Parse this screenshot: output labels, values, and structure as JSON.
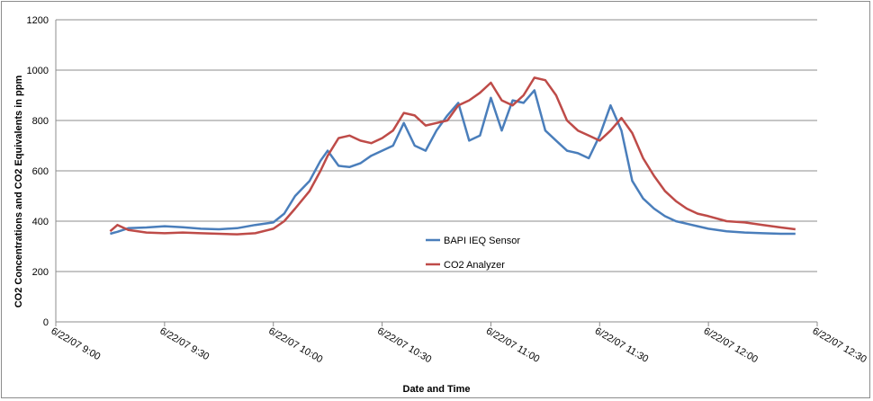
{
  "chart_data": {
    "type": "line",
    "title": "",
    "xlabel": "Date and Time",
    "ylabel": "CO2 Concentrations and CO2 Equivalents in ppm",
    "ylim": [
      0,
      1200
    ],
    "yticks": [
      0,
      200,
      400,
      600,
      800,
      1000,
      1200
    ],
    "xlim": [
      "6/22/07 9:00",
      "6/22/07 12:30"
    ],
    "xtick_labels": [
      "6/22/07 9:00",
      "6/22/07 9:30",
      "6/22/07 10:00",
      "6/22/07 10:30",
      "6/22/07 11:00",
      "6/22/07 11:30",
      "6/22/07 12:00",
      "6/22/07 12:30"
    ],
    "grid": "horizontal",
    "legend_position": "center-lower",
    "series": [
      {
        "name": "BAPI IEQ Sensor",
        "color": "#4a7ebb",
        "points": [
          [
            "9:15",
            350
          ],
          [
            "9:17",
            358
          ],
          [
            "9:20",
            372
          ],
          [
            "9:25",
            375
          ],
          [
            "9:30",
            380
          ],
          [
            "9:35",
            376
          ],
          [
            "9:40",
            370
          ],
          [
            "9:45",
            368
          ],
          [
            "9:50",
            372
          ],
          [
            "9:55",
            385
          ],
          [
            "10:00",
            395
          ],
          [
            "10:03",
            430
          ],
          [
            "10:06",
            500
          ],
          [
            "10:10",
            560
          ],
          [
            "10:13",
            640
          ],
          [
            "10:15",
            680
          ],
          [
            "10:18",
            620
          ],
          [
            "10:21",
            615
          ],
          [
            "10:24",
            630
          ],
          [
            "10:27",
            660
          ],
          [
            "10:30",
            680
          ],
          [
            "10:33",
            700
          ],
          [
            "10:36",
            790
          ],
          [
            "10:39",
            700
          ],
          [
            "10:42",
            680
          ],
          [
            "10:45",
            760
          ],
          [
            "10:48",
            820
          ],
          [
            "10:51",
            870
          ],
          [
            "10:54",
            720
          ],
          [
            "10:57",
            740
          ],
          [
            "11:00",
            890
          ],
          [
            "11:03",
            760
          ],
          [
            "11:06",
            880
          ],
          [
            "11:09",
            870
          ],
          [
            "11:12",
            920
          ],
          [
            "11:15",
            760
          ],
          [
            "11:18",
            720
          ],
          [
            "11:21",
            680
          ],
          [
            "11:24",
            670
          ],
          [
            "11:27",
            650
          ],
          [
            "11:30",
            740
          ],
          [
            "11:33",
            860
          ],
          [
            "11:36",
            760
          ],
          [
            "11:39",
            560
          ],
          [
            "11:42",
            490
          ],
          [
            "11:45",
            450
          ],
          [
            "11:48",
            420
          ],
          [
            "11:51",
            400
          ],
          [
            "11:54",
            390
          ],
          [
            "11:57",
            380
          ],
          [
            "12:00",
            370
          ],
          [
            "12:05",
            360
          ],
          [
            "12:10",
            355
          ],
          [
            "12:15",
            352
          ],
          [
            "12:20",
            350
          ],
          [
            "12:24",
            350
          ]
        ]
      },
      {
        "name": "CO2 Analyzer",
        "color": "#be4b48",
        "points": [
          [
            "9:15",
            360
          ],
          [
            "9:17",
            385
          ],
          [
            "9:20",
            365
          ],
          [
            "9:25",
            355
          ],
          [
            "9:30",
            352
          ],
          [
            "9:35",
            355
          ],
          [
            "9:40",
            352
          ],
          [
            "9:45",
            350
          ],
          [
            "9:50",
            348
          ],
          [
            "9:55",
            352
          ],
          [
            "10:00",
            370
          ],
          [
            "10:03",
            400
          ],
          [
            "10:06",
            450
          ],
          [
            "10:10",
            520
          ],
          [
            "10:13",
            600
          ],
          [
            "10:15",
            660
          ],
          [
            "10:18",
            730
          ],
          [
            "10:21",
            740
          ],
          [
            "10:24",
            720
          ],
          [
            "10:27",
            710
          ],
          [
            "10:30",
            730
          ],
          [
            "10:33",
            760
          ],
          [
            "10:36",
            830
          ],
          [
            "10:39",
            820
          ],
          [
            "10:42",
            780
          ],
          [
            "10:45",
            790
          ],
          [
            "10:48",
            800
          ],
          [
            "10:51",
            860
          ],
          [
            "10:54",
            880
          ],
          [
            "10:57",
            910
          ],
          [
            "11:00",
            950
          ],
          [
            "11:03",
            880
          ],
          [
            "11:06",
            860
          ],
          [
            "11:09",
            900
          ],
          [
            "11:12",
            970
          ],
          [
            "11:15",
            960
          ],
          [
            "11:18",
            900
          ],
          [
            "11:21",
            800
          ],
          [
            "11:24",
            760
          ],
          [
            "11:27",
            740
          ],
          [
            "11:30",
            720
          ],
          [
            "11:33",
            760
          ],
          [
            "11:36",
            810
          ],
          [
            "11:39",
            750
          ],
          [
            "11:42",
            650
          ],
          [
            "11:45",
            580
          ],
          [
            "11:48",
            520
          ],
          [
            "11:51",
            480
          ],
          [
            "11:54",
            450
          ],
          [
            "11:57",
            430
          ],
          [
            "12:00",
            420
          ],
          [
            "12:05",
            400
          ],
          [
            "12:10",
            395
          ],
          [
            "12:15",
            385
          ],
          [
            "12:20",
            375
          ],
          [
            "12:24",
            368
          ]
        ]
      }
    ]
  }
}
